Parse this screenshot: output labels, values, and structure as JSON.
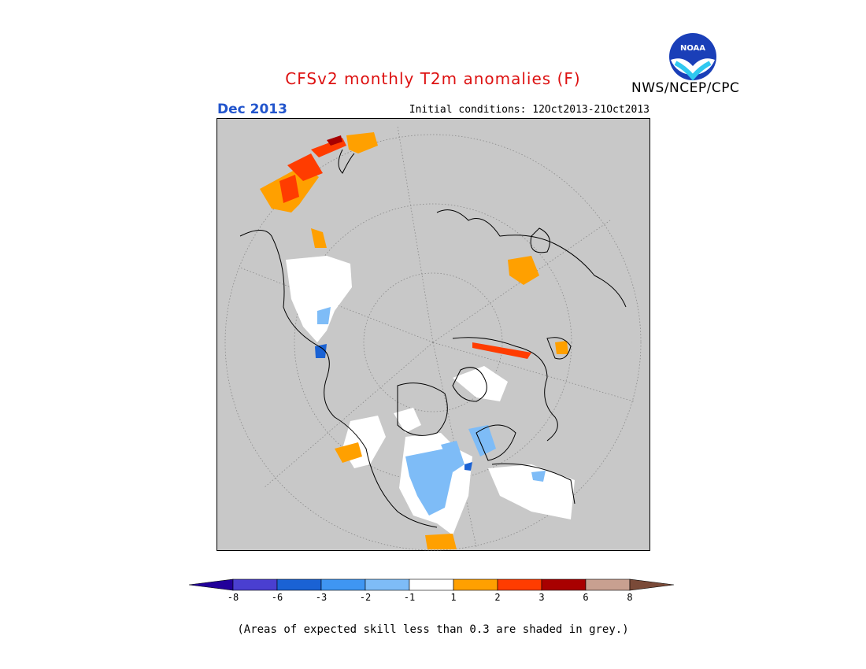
{
  "header": {
    "title": "CFSv2 monthly T2m anomalies (F)",
    "title_color": "#dd1111",
    "agency": "NWS/NCEP/CPC",
    "logo_text": "NOAA",
    "forecast_month": "Dec 2013",
    "forecast_month_color": "#2255cc",
    "initial_conditions": "Initial conditions: 12Oct2013-21Oct2013"
  },
  "legend": {
    "colors": [
      "#22009a",
      "#4a3fd0",
      "#1a62d4",
      "#3f96f2",
      "#7ebcf7",
      "#ffffff",
      "#ffa000",
      "#ff3c00",
      "#a80000",
      "#c8a090",
      "#7a4a38"
    ],
    "labels": [
      "-8",
      "-6",
      "-3",
      "-2",
      "-1",
      "1",
      "2",
      "3",
      "6",
      "8"
    ],
    "footnote": "(Areas of expected skill less than 0.3 are shaded in grey.)"
  },
  "map": {
    "background": "#c8c8c8",
    "grey_skill_color": "#c8c8c8"
  }
}
